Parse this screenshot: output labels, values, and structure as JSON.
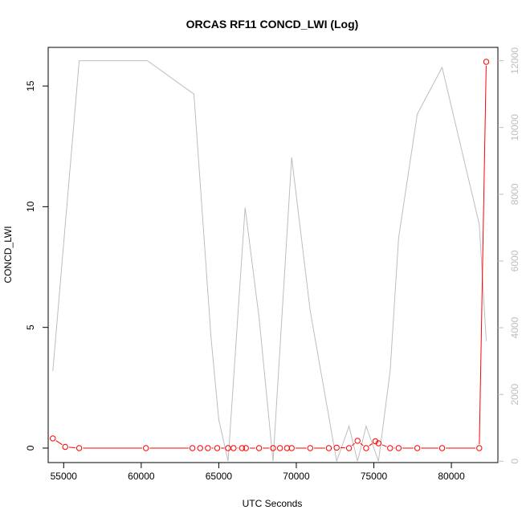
{
  "chart_data": {
    "type": "line",
    "title": "ORCAS RF11 CONCD_LWI (Log)",
    "xlabel": "UTC Seconds",
    "ylabel": "CONCD_LWI",
    "xlim": [
      54000,
      83000
    ],
    "ylim": [
      -0.6,
      16.6
    ],
    "y2lim": [
      -40,
      12400
    ],
    "x_ticks": [
      55000,
      60000,
      65000,
      70000,
      75000,
      80000
    ],
    "y_ticks": [
      0,
      5,
      10,
      15
    ],
    "y2_ticks": [
      0,
      2000,
      4000,
      6000,
      8000,
      10000,
      12000
    ],
    "grid": false,
    "series": [
      {
        "color": "#ff0000",
        "axis": "left",
        "markers": "open-circle",
        "x": [
          54300,
          55100,
          56000,
          60300,
          63300,
          63800,
          64300,
          64900,
          65600,
          65950,
          66500,
          66750,
          67600,
          68500,
          68950,
          69400,
          69700,
          70900,
          72100,
          72600,
          73400,
          73950,
          74500,
          75100,
          75300,
          76050,
          76600,
          77800,
          79400,
          81800,
          82250
        ],
        "y": [
          0.4,
          0.05,
          0.0,
          0.0,
          0.0,
          0.0,
          0.0,
          0.0,
          0.0,
          0.0,
          0.0,
          0.0,
          0.0,
          0.0,
          0.0,
          0.0,
          0.0,
          0.0,
          0.0,
          0.02,
          0.0,
          0.3,
          0.0,
          0.28,
          0.2,
          0.0,
          0.0,
          0.0,
          0.0,
          0.0,
          16.0
        ]
      },
      {
        "color": "#bdbdbd",
        "axis": "right",
        "markers": "none",
        "x": [
          54300,
          56000,
          60400,
          63400,
          64500,
          65000,
          65600,
          66700,
          67600,
          68500,
          69700,
          70900,
          72600,
          73400,
          73950,
          74500,
          75300,
          76050,
          76600,
          77800,
          79400,
          81800,
          82250
        ],
        "y": [
          2700,
          12000,
          12000,
          11000,
          3700,
          1250,
          0,
          7600,
          4300,
          0,
          9100,
          4500,
          0,
          1050,
          0,
          1050,
          0,
          2700,
          6700,
          10400,
          11800,
          7100,
          3600
        ]
      }
    ]
  }
}
